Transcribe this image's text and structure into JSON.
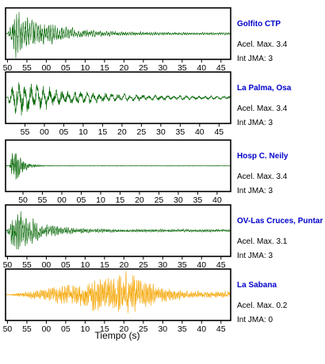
{
  "chart_data": {
    "type": "line",
    "xlabel": "Tiempo (s)",
    "accel_prefix": "Acel. Max.",
    "jma_prefix": "Int JMA:",
    "panels": [
      {
        "station": "Golfito CTP",
        "acel_max": "3.4",
        "int_jma": "3",
        "color": "#006400",
        "label_color": "#0000cc",
        "tick_labels": [
          "50",
          "55",
          "00",
          "05",
          "10",
          "15",
          "20",
          "25",
          "30",
          "35",
          "40",
          "45"
        ],
        "first_tick_offset_s": 0.5,
        "window_s": 58,
        "signal": {
          "onset_s": 0.5,
          "peak_s": 2.5,
          "decay_s": 9.0,
          "peak_amp": 1.0,
          "tail_amp": 0.05,
          "period_s": 0.55
        }
      },
      {
        "station": "La Palma, Osa",
        "acel_max": "3.4",
        "int_jma": "3",
        "color": "#006400",
        "label_color": "#0000cc",
        "tick_labels": [
          "55",
          "00",
          "05",
          "10",
          "15",
          "20",
          "25",
          "30",
          "35",
          "40",
          "45",
          "50"
        ],
        "first_tick_offset_s": 5.0,
        "window_s": 58,
        "signal": {
          "onset_s": 0.3,
          "peak_s": 2.5,
          "decay_s": 14.0,
          "peak_amp": 0.75,
          "tail_amp": 0.06,
          "period_s": 1.6
        }
      },
      {
        "station": "Hosp C. Neily",
        "acel_max": "3.4",
        "int_jma": "3",
        "color": "#006400",
        "label_color": "#0000cc",
        "tick_labels": [
          "45",
          "50",
          "55",
          "00",
          "05",
          "10",
          "15",
          "20",
          "25",
          "30",
          "35",
          "40"
        ],
        "first_tick_offset_s": -0.5,
        "window_s": 58,
        "signal": {
          "onset_s": 1.0,
          "peak_s": 2.2,
          "decay_s": 1.8,
          "peak_amp": 1.0,
          "tail_amp": 0.015,
          "period_s": 0.35
        }
      },
      {
        "station": "OV-Las Cruces, Puntar",
        "acel_max": "3.1",
        "int_jma": "3",
        "color": "#006400",
        "label_color": "#0000cc",
        "tick_labels": [
          "50",
          "55",
          "00",
          "05",
          "10",
          "15",
          "20",
          "25",
          "30",
          "35",
          "40",
          "45"
        ],
        "first_tick_offset_s": 0.5,
        "window_s": 58,
        "signal": {
          "onset_s": 0.3,
          "peak_s": 2.0,
          "decay_s": 6.5,
          "peak_amp": 1.0,
          "tail_amp": 0.06,
          "period_s": 0.45
        }
      },
      {
        "station": "La Sabana",
        "acel_max": "0.2",
        "int_jma": "0",
        "color": "#f5a500",
        "label_color": "#0000cc",
        "tick_labels": [
          "50",
          "55",
          "00",
          "05",
          "10",
          "15",
          "20",
          "25",
          "30",
          "35",
          "40",
          "45"
        ],
        "first_tick_offset_s": 0.5,
        "window_s": 58,
        "signal": {
          "onset_s": 0.5,
          "peak_s": 33.5,
          "decay_s": 5.0,
          "peak_amp": 1.0,
          "tail_amp": 0.12,
          "period_s": 0.35,
          "noise_floor": 0.12
        }
      }
    ]
  }
}
